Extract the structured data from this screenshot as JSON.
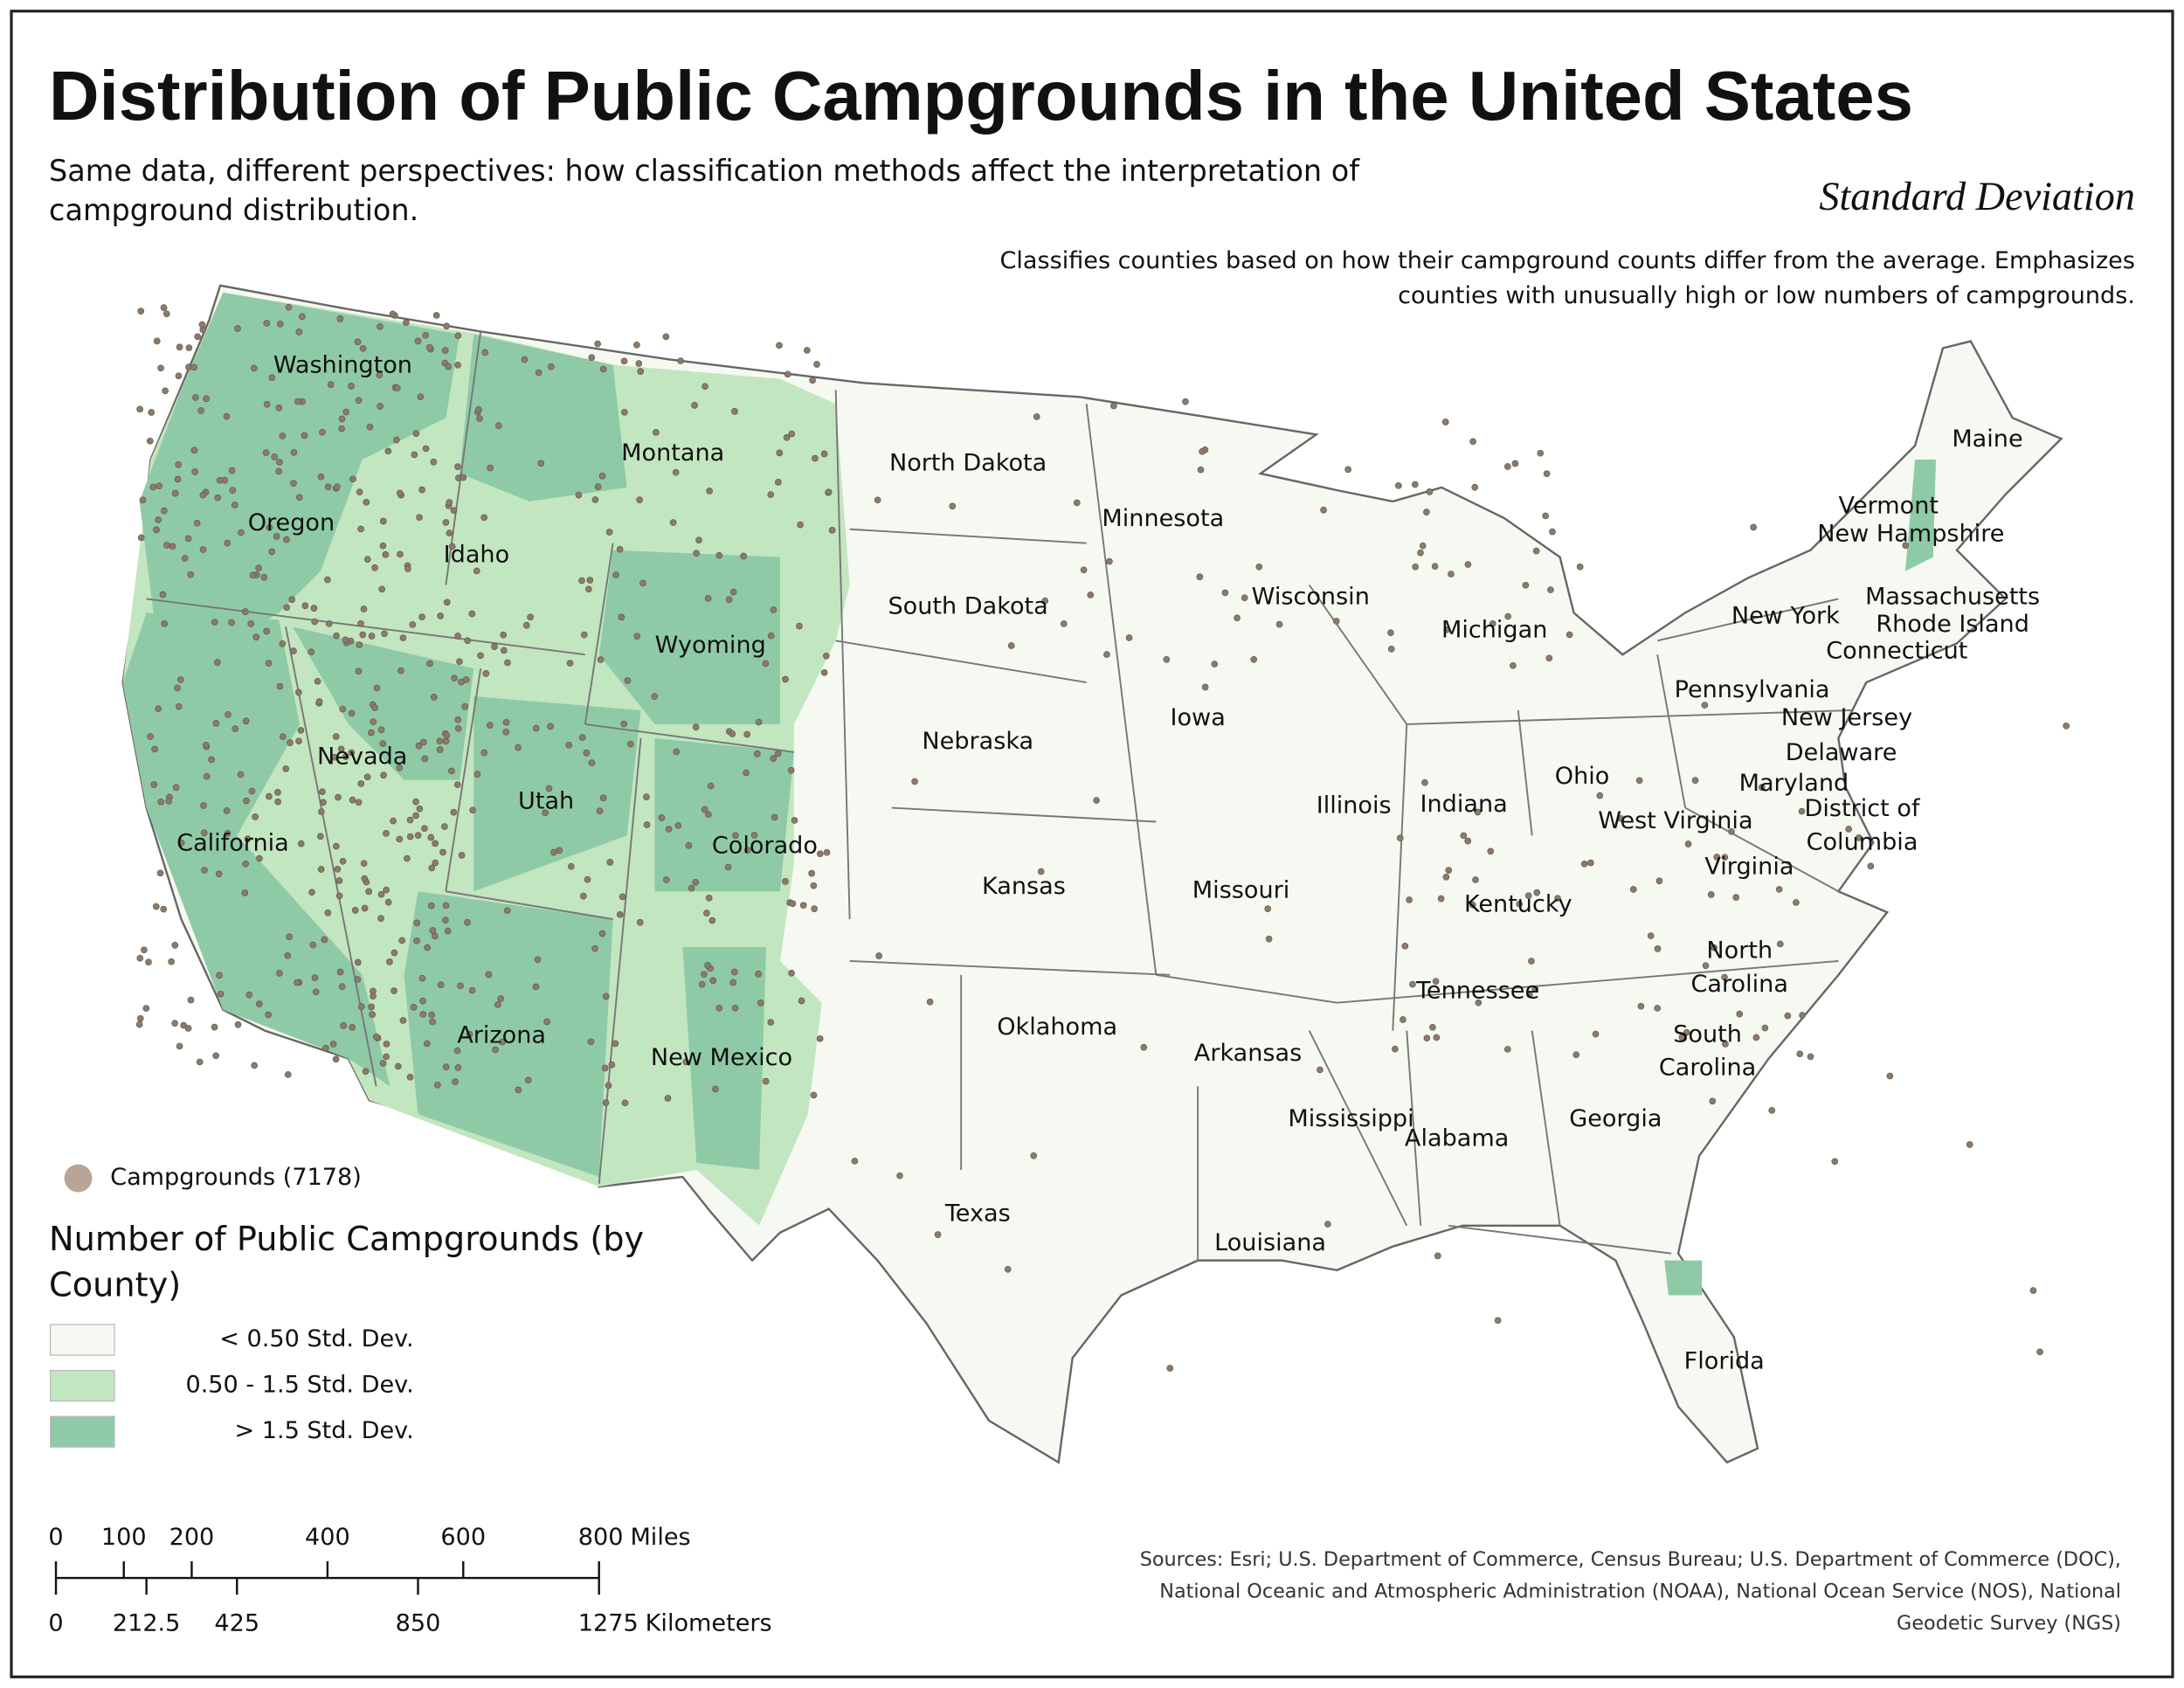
{
  "title": "Distribution of Public Campgrounds in the United States",
  "subtitle": [
    "Same data, different perspectives: how classification methods affect the interpretation of",
    "campground distribution."
  ],
  "method": {
    "title": "Standard Deviation",
    "description": [
      "Classifies counties based on how their campground counts differ from the average. Emphasizes",
      "counties with unusually high or low numbers of campgrounds."
    ]
  },
  "map": {
    "states": [
      "Washington",
      "Montana",
      "North Dakota",
      "Minnesota",
      "Maine",
      "Vermont",
      "New Hampshire",
      "Oregon",
      "Idaho",
      "Wisconsin",
      "Massachusetts",
      "New York",
      "Rhode Island",
      "South Dakota",
      "Michigan",
      "Wyoming",
      "Connecticut",
      "Pennsylvania",
      "Iowa",
      "New Jersey",
      "Nebraska",
      "Delaware",
      "Nevada",
      "Ohio",
      "Maryland",
      "Utah",
      "Illinois",
      "Indiana",
      [
        "District of",
        "Columbia"
      ],
      "West Virginia",
      "California",
      "Colorado",
      "Virginia",
      "Kansas",
      "Missouri",
      "Kentucky",
      [
        "North",
        "Carolina"
      ],
      "Tennessee",
      "Oklahoma",
      "Arizona",
      [
        "South",
        "Carolina"
      ],
      "Arkansas",
      "New Mexico",
      "Mississippi",
      "Georgia",
      "Alabama",
      "Texas",
      "Louisiana",
      "Florida"
    ],
    "points_legend": "Campgrounds (7178)"
  },
  "legend": {
    "title": [
      "Number of Public Campgrounds (by",
      "County)"
    ],
    "classes": [
      {
        "label": "< 0.50 Std. Dev.",
        "color": "#f6f9f1"
      },
      {
        "label": "0.50 - 1.5 Std. Dev.",
        "color": "#c2e6c0"
      },
      {
        "label": "> 1.5 Std. Dev.",
        "color": "#8fcaa6"
      }
    ]
  },
  "scale_bar": {
    "miles": {
      "ticks": [
        0,
        100,
        200,
        400,
        600,
        800
      ],
      "unit": "Miles"
    },
    "kilometers": {
      "ticks": [
        0,
        212.5,
        425,
        850,
        1275
      ],
      "unit": "Kilometers"
    }
  },
  "sources": [
    "Sources: Esri; U.S. Department of Commerce, Census Bureau; U.S. Department of Commerce (DOC),",
    "National Oceanic and Atmospheric Administration (NOAA), National Ocean Service (NOS), National",
    "Geodetic Survey (NGS)"
  ]
}
